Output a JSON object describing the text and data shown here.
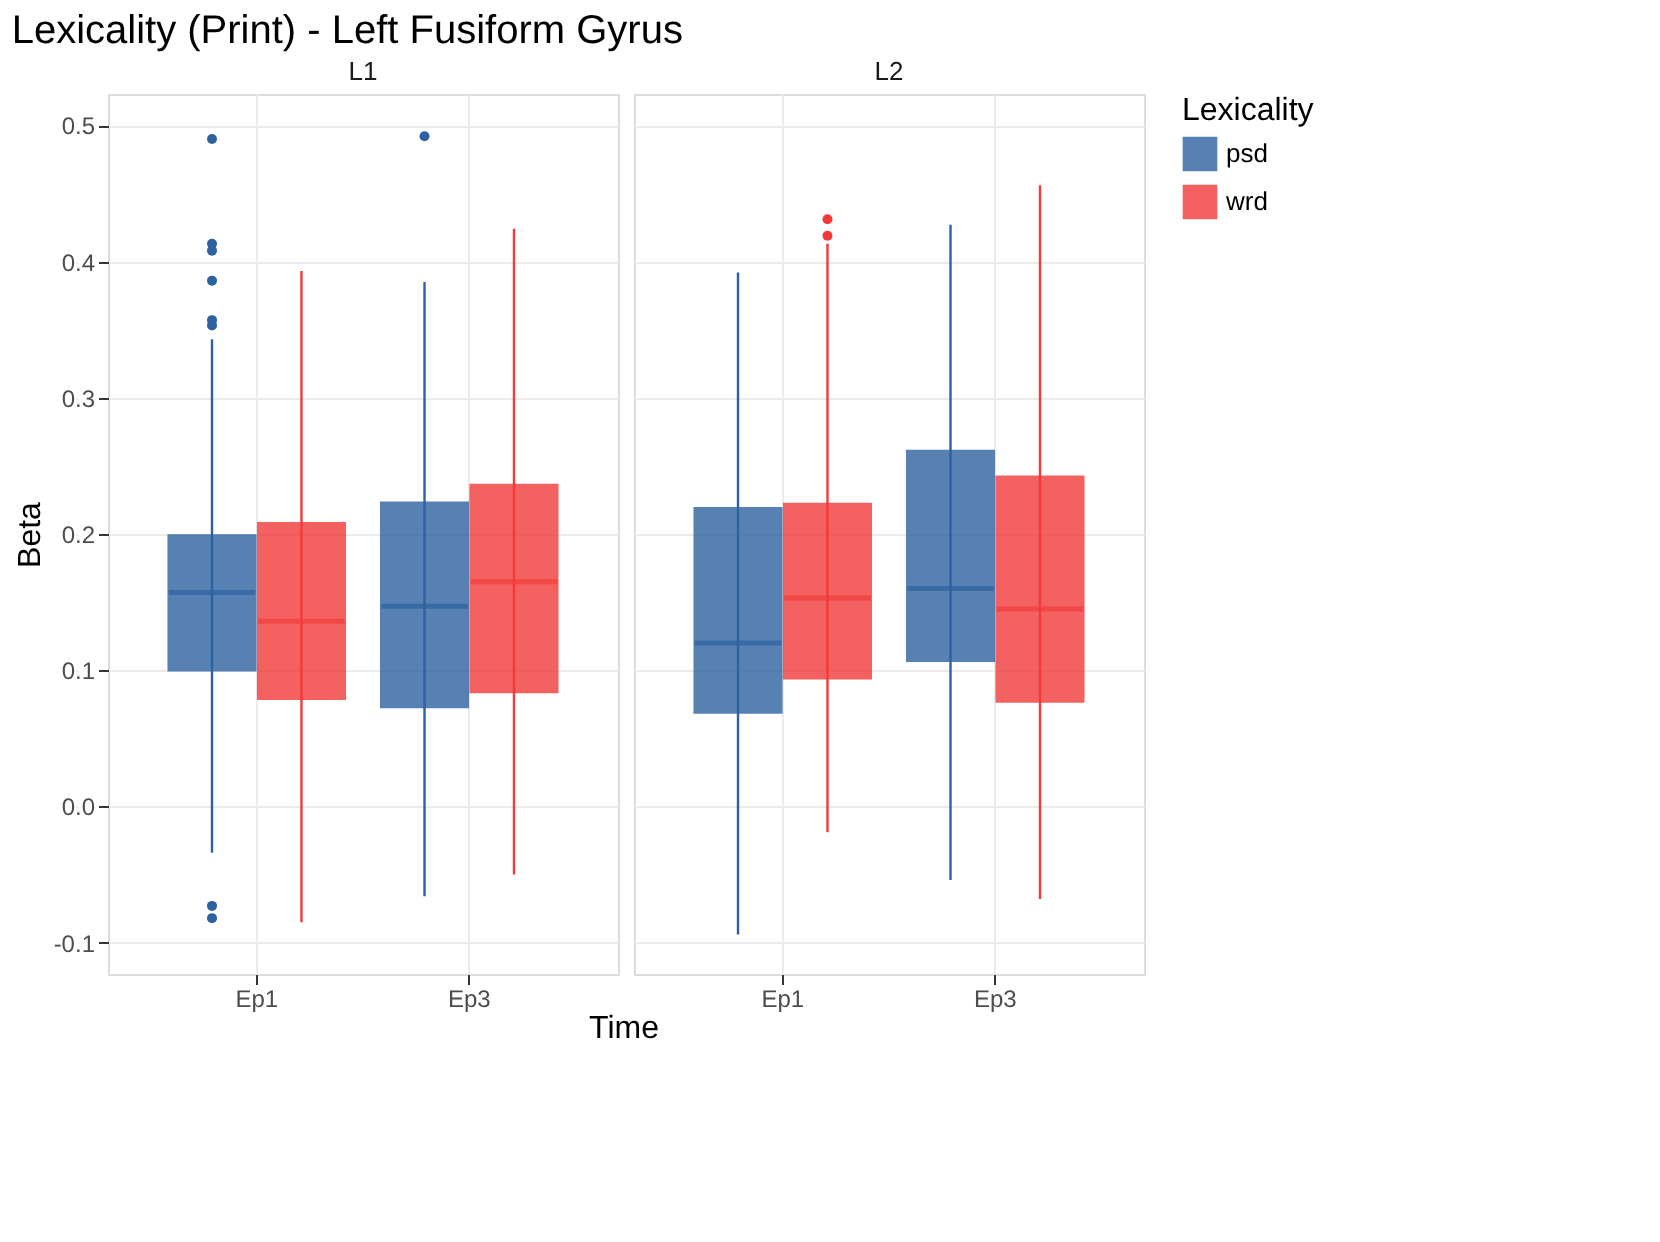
{
  "chart_data": [
    {
      "type": "box",
      "title": "Lexicality (Print) - Left Fusiform Gyrus",
      "subtitle": "L1",
      "xlabel": "Time",
      "ylabel": "Beta",
      "legend_title": "Lexicality",
      "legend": "right",
      "grid": true,
      "categories": [
        "Ep1",
        "Ep3"
      ],
      "ylim": [
        -0.123,
        0.523
      ],
      "yticks": [
        {
          "value": -0.1,
          "label": "-0.1"
        },
        {
          "value": 0,
          "label": "0.0"
        },
        0.1,
        0.2,
        0.3,
        0.4,
        0.5
      ],
      "series": [
        {
          "name": "psd",
          "color": "#2c62a0",
          "boxes": [
            {
              "low": -0.034,
              "q1": 0.1,
              "median": 0.157,
              "q3": 0.199,
              "high": 0.343,
              "outliers": [
                0.49,
                0.413,
                0.408,
                0.386,
                0.357,
                0.353,
                -0.073,
                -0.082
              ]
            },
            {
              "low": -0.066,
              "q1": 0.073,
              "median": 0.147,
              "q3": 0.223,
              "high": 0.385,
              "outliers": [
                0.492
              ]
            }
          ]
        },
        {
          "name": "wrd",
          "color": "#f23a3a",
          "boxes": [
            {
              "low": -0.085,
              "q1": 0.079,
              "median": 0.136,
              "q3": 0.208,
              "high": 0.393
            },
            {
              "low": -0.05,
              "q1": 0.084,
              "median": 0.165,
              "q3": 0.236,
              "high": 0.424
            }
          ]
        }
      ]
    },
    {
      "type": "box",
      "subtitle": "L2",
      "grid": true,
      "tick_labels": "x",
      "categories": [
        "Ep1",
        "Ep3"
      ],
      "ylim": [
        -0.123,
        0.523
      ],
      "yticks": [
        -0.1,
        0,
        0.1,
        0.2,
        0.3,
        0.4,
        0.5
      ],
      "series": [
        {
          "name": "psd",
          "color": "#2c62a0",
          "boxes": [
            {
              "low": -0.094,
              "q1": 0.069,
              "median": 0.12,
              "q3": 0.219,
              "high": 0.392
            },
            {
              "low": -0.054,
              "q1": 0.107,
              "median": 0.16,
              "q3": 0.261,
              "high": 0.427
            }
          ]
        },
        {
          "name": "wrd",
          "color": "#f23a3a",
          "boxes": [
            {
              "low": -0.019,
              "q1": 0.094,
              "median": 0.153,
              "q3": 0.222,
              "high": 0.413,
              "outliers": [
                0.431,
                0.419
              ]
            },
            {
              "low": -0.068,
              "q1": 0.077,
              "median": 0.145,
              "q3": 0.242,
              "high": 0.456
            }
          ]
        }
      ]
    }
  ]
}
